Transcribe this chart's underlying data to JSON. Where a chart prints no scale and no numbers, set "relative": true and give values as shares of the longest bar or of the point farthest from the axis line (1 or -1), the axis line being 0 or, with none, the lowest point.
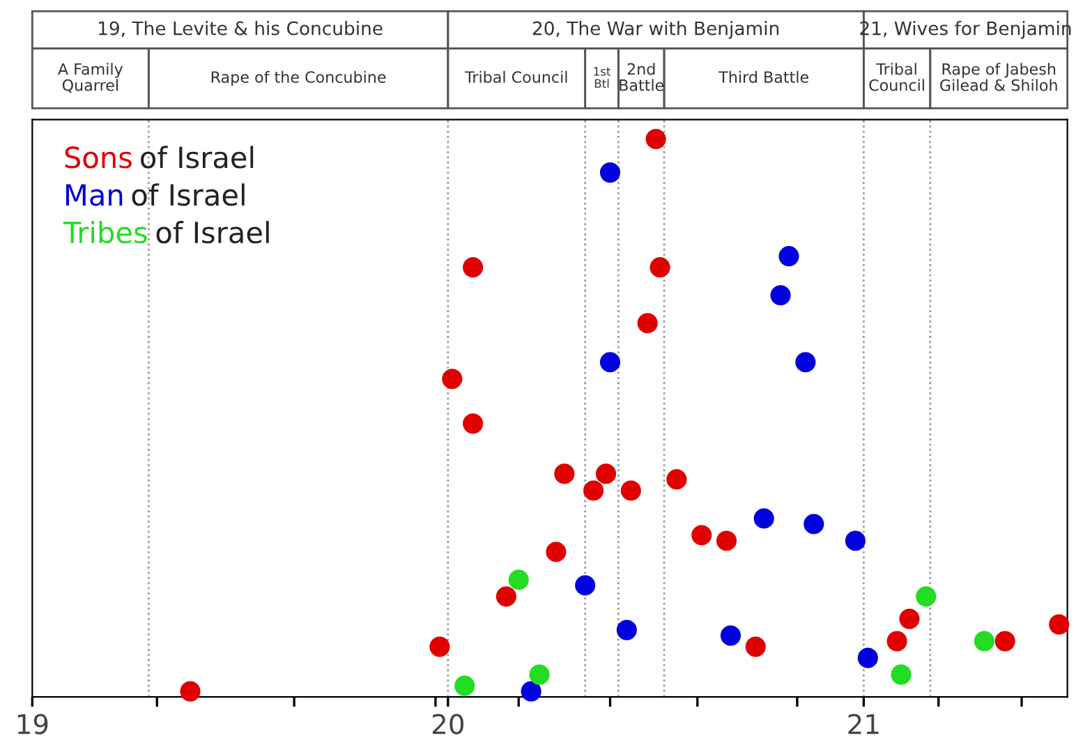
{
  "chart_data": {
    "type": "scatter",
    "relative": true,
    "marker": "circle",
    "grid": false,
    "legend": "top left",
    "xlim": [
      19,
      21.49
    ],
    "xticks": [
      19,
      {
        "value": 19.3,
        "label": null
      },
      {
        "value": 19.63,
        "label": null
      },
      {
        "value": 19.97,
        "label": null
      },
      20,
      {
        "value": 20.17,
        "label": null
      },
      {
        "value": 20.39,
        "label": null
      },
      {
        "value": 20.6,
        "label": null
      },
      {
        "value": 20.84,
        "label": null
      },
      21,
      {
        "value": 21.18,
        "label": null
      },
      {
        "value": 21.38,
        "label": null
      }
    ],
    "ref_lines": [
      {
        "axis": "x",
        "value": 19.28,
        "line_style": "dotted",
        "color": "#999999"
      },
      {
        "axis": "x",
        "value": 20,
        "line_style": "dotted",
        "color": "#999999"
      },
      {
        "axis": "x",
        "value": 20.33,
        "line_style": "dotted",
        "color": "#999999"
      },
      {
        "axis": "x",
        "value": 20.41,
        "line_style": "dotted",
        "color": "#999999"
      },
      {
        "axis": "x",
        "value": 20.52,
        "line_style": "dotted",
        "color": "#999999"
      },
      {
        "axis": "x",
        "value": 21,
        "line_style": "dotted",
        "color": "#999999"
      },
      {
        "axis": "x",
        "value": 21.16,
        "line_style": "dotted",
        "color": "#999999"
      }
    ],
    "annotations": [
      "19, The Levite & his Concubine",
      "20, The War with Benjamin",
      "21, Wives for Benjamin",
      "A Family\nQuarrel",
      "Rape of the Concubine",
      "Tribal Council",
      "1st\nBtl",
      "2nd\nBattle",
      "Third Battle",
      "Tribal\nCouncil",
      "Rape of Jabesh\nGilead & Shiloh"
    ],
    "series": [
      {
        "name": "Sons of Israel",
        "color": "#e00000",
        "x": [
          19.38,
          19.98,
          20.01,
          20.06,
          20.06,
          20.14,
          20.26,
          20.28,
          20.35,
          20.38,
          20.44,
          20.5,
          20.51,
          20.48,
          20.55,
          20.61,
          20.67,
          20.74,
          21.08,
          21.11,
          21.34,
          21.47
        ],
        "values": [
          0.01,
          0.09,
          0.57,
          0.77,
          0.49,
          0.18,
          0.26,
          0.4,
          0.37,
          0.4,
          0.37,
          1.0,
          0.77,
          0.67,
          0.39,
          0.29,
          0.28,
          0.09,
          0.1,
          0.14,
          0.1,
          0.13
        ]
      },
      {
        "name": "Man of Israel",
        "color": "#0000dd",
        "x": [
          20.2,
          20.33,
          20.39,
          20.39,
          20.43,
          20.68,
          20.76,
          20.8,
          20.82,
          20.86,
          20.88,
          20.98,
          21.01
        ],
        "values": [
          0.01,
          0.2,
          0.94,
          0.6,
          0.12,
          0.11,
          0.32,
          0.72,
          0.79,
          0.6,
          0.31,
          0.28,
          0.07
        ]
      },
      {
        "name": "Tribes of Israel",
        "color": "#22dd22",
        "x": [
          20.04,
          20.17,
          20.22,
          21.09,
          21.15,
          21.29
        ],
        "values": [
          0.02,
          0.21,
          0.04,
          0.04,
          0.18,
          0.1
        ]
      }
    ]
  }
}
